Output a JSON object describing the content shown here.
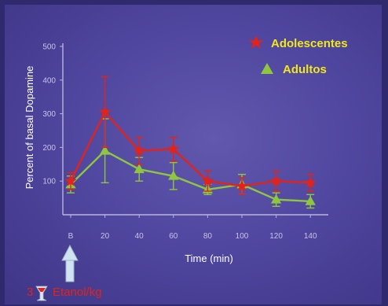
{
  "chart_data": {
    "type": "line",
    "xlabel": "Time (min)",
    "ylabel": "Percent of basal Dopamine",
    "categories": [
      "B",
      "20",
      "40",
      "60",
      "80",
      "100",
      "120",
      "140"
    ],
    "yticks": [
      "100",
      "200",
      "300",
      "400",
      "500"
    ],
    "ylim": [
      0,
      500
    ],
    "grid": false,
    "legend_position": "top-right",
    "series": [
      {
        "name": "Adolescentes",
        "color": "#e0231c",
        "marker": "star",
        "values": [
          100,
          305,
          190,
          195,
          100,
          85,
          100,
          95
        ],
        "errors": [
          25,
          105,
          40,
          35,
          30,
          25,
          30,
          25
        ]
      },
      {
        "name": "Adultos",
        "color": "#8fc63f",
        "marker": "triangle",
        "values": [
          90,
          190,
          135,
          115,
          75,
          90,
          45,
          40
        ],
        "errors": [
          25,
          95,
          35,
          40,
          15,
          30,
          20,
          20
        ]
      }
    ],
    "annotation": {
      "number": "3",
      "icon": "glass-icon",
      "text": "Etanol/kg",
      "color": "#e0231c",
      "arrow_color": "#cfe3f0"
    }
  }
}
